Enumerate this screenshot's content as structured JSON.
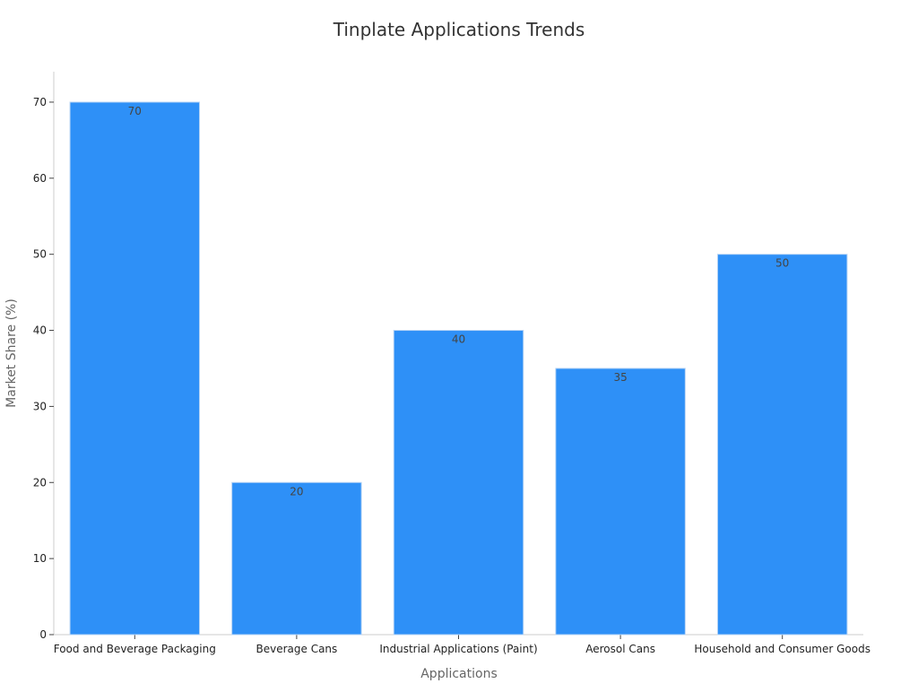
{
  "chart_data": {
    "type": "bar",
    "title": "Tinplate Applications Trends",
    "xlabel": "Applications",
    "ylabel": "Market Share (%)",
    "categories": [
      "Food and Beverage Packaging",
      "Beverage Cans",
      "Industrial Applications (Paint)",
      "Aerosol Cans",
      "Household and Consumer Goods"
    ],
    "values": [
      70,
      20,
      40,
      35,
      50
    ],
    "ylim": [
      0,
      74
    ],
    "yticks": [
      0,
      10,
      20,
      30,
      40,
      50,
      60,
      70
    ],
    "grid": false,
    "legend": "none",
    "data_labels": true,
    "bar_color": "#2E90F7",
    "bar_edge_color": "#B7D4F5"
  }
}
